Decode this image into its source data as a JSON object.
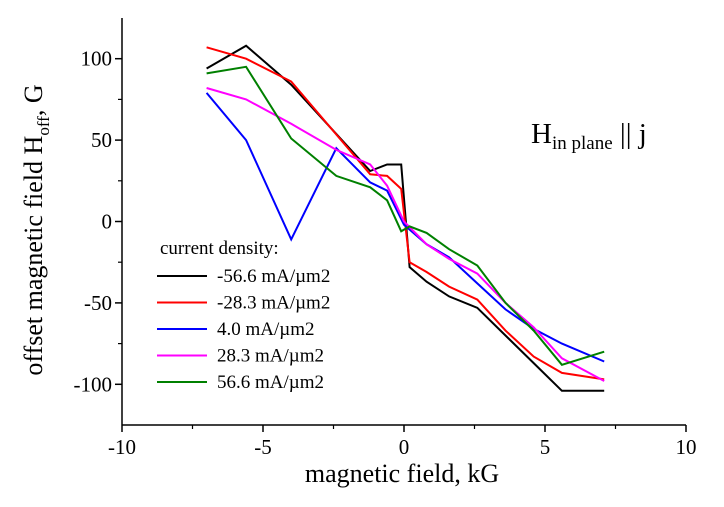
{
  "chart_data": {
    "type": "line",
    "title": "",
    "xlabel": "magnetic field, kG",
    "ylabel_main": "offset magnetic field H",
    "ylabel_sub": "off",
    "ylabel_tail": ", G",
    "xlim": [
      -10,
      10
    ],
    "ylim": [
      -125,
      125
    ],
    "x_ticks": [
      -10,
      -5,
      0,
      5,
      10
    ],
    "y_ticks": [
      -100,
      -50,
      0,
      50,
      100
    ],
    "grid": false,
    "legend_position": "lower-left",
    "legend_title": "current density:",
    "annotation": {
      "main": "H",
      "sub": "in plane",
      "tail": " || j"
    },
    "series": [
      {
        "name": "-56.6 mA/µm2",
        "color": "#000000",
        "points": [
          [
            -7,
            94
          ],
          [
            -5.6,
            108
          ],
          [
            -4,
            84
          ],
          [
            -1.2,
            31
          ],
          [
            -0.6,
            35
          ],
          [
            -0.1,
            35
          ],
          [
            0.2,
            -28
          ],
          [
            0.8,
            -37
          ],
          [
            1.6,
            -46
          ],
          [
            2.6,
            -53
          ],
          [
            3.6,
            -70
          ],
          [
            4.6,
            -87
          ],
          [
            5.6,
            -104
          ],
          [
            7.1,
            -104
          ]
        ]
      },
      {
        "name": "-28.3 mA/µm2",
        "color": "#ff0000",
        "points": [
          [
            -7,
            107
          ],
          [
            -5.6,
            100
          ],
          [
            -4,
            86
          ],
          [
            -1.2,
            29
          ],
          [
            -0.6,
            28
          ],
          [
            -0.1,
            20
          ],
          [
            0.2,
            -25
          ],
          [
            0.8,
            -31
          ],
          [
            1.6,
            -40
          ],
          [
            2.6,
            -48
          ],
          [
            3.6,
            -67
          ],
          [
            4.6,
            -83
          ],
          [
            5.6,
            -93
          ],
          [
            7.1,
            -97
          ]
        ]
      },
      {
        "name": "4.0 mA/µm2",
        "color": "#0000ff",
        "points": [
          [
            -7,
            79
          ],
          [
            -5.6,
            50
          ],
          [
            -4,
            -11
          ],
          [
            -2.4,
            45
          ],
          [
            -1.2,
            24
          ],
          [
            -0.6,
            19
          ],
          [
            0,
            -2
          ],
          [
            0.8,
            -14
          ],
          [
            1.6,
            -22
          ],
          [
            2.6,
            -38
          ],
          [
            3.6,
            -54
          ],
          [
            4.6,
            -66
          ],
          [
            5.6,
            -75
          ],
          [
            7.1,
            -86
          ]
        ]
      },
      {
        "name": "28.3 mA/µm2",
        "color": "#ff00ff",
        "points": [
          [
            -7,
            82
          ],
          [
            -5.6,
            75
          ],
          [
            -4,
            60
          ],
          [
            -2.4,
            44
          ],
          [
            -1.2,
            35
          ],
          [
            -0.6,
            22
          ],
          [
            0,
            0
          ],
          [
            0.8,
            -14
          ],
          [
            1.6,
            -23
          ],
          [
            2.6,
            -32
          ],
          [
            3.6,
            -50
          ],
          [
            4.6,
            -65
          ],
          [
            5.6,
            -84
          ],
          [
            7.1,
            -98
          ]
        ]
      },
      {
        "name": "56.6 mA/µm2",
        "color": "#008000",
        "points": [
          [
            -7,
            91
          ],
          [
            -5.6,
            95
          ],
          [
            -4,
            51
          ],
          [
            -2.4,
            28
          ],
          [
            -1.2,
            21
          ],
          [
            -0.6,
            13
          ],
          [
            -0.1,
            -6
          ],
          [
            0.2,
            -3
          ],
          [
            0.8,
            -7
          ],
          [
            1.6,
            -17
          ],
          [
            2.6,
            -27
          ],
          [
            3.6,
            -50
          ],
          [
            4.6,
            -67
          ],
          [
            5.6,
            -88
          ],
          [
            7.1,
            -80
          ]
        ]
      }
    ]
  }
}
